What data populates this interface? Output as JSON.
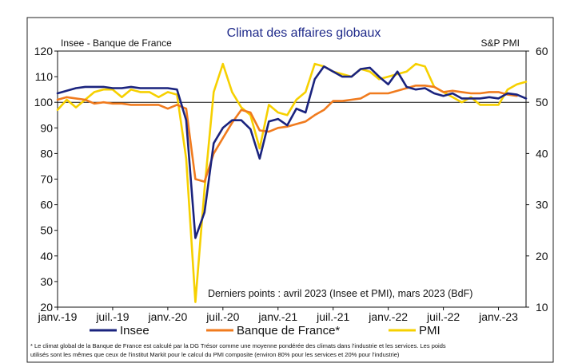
{
  "chart_data": {
    "type": "line",
    "title": "Climat des affaires globaux",
    "left_axis_label": "Insee - Banque de France",
    "right_axis_label": "S&P PMI",
    "ylim_left": [
      20,
      120
    ],
    "ylim_right": [
      10,
      60
    ],
    "yticks_left": [
      "20",
      "30",
      "40",
      "50",
      "60",
      "70",
      "80",
      "90",
      "100",
      "110",
      "120"
    ],
    "yticks_right": [
      "10",
      "20",
      "30",
      "40",
      "50",
      "60"
    ],
    "x_range": [
      "2019-01",
      "2023-04"
    ],
    "xticks": [
      {
        "label": "janv.-19",
        "date": "2019-01"
      },
      {
        "label": "juil.-19",
        "date": "2019-07"
      },
      {
        "label": "janv.-20",
        "date": "2020-01"
      },
      {
        "label": "juil.-20",
        "date": "2020-07"
      },
      {
        "label": "janv.-21",
        "date": "2021-01"
      },
      {
        "label": "juil.-21",
        "date": "2021-07"
      },
      {
        "label": "janv.-22",
        "date": "2022-01"
      },
      {
        "label": "juil.-22",
        "date": "2022-07"
      },
      {
        "label": "janv.-23",
        "date": "2023-01"
      }
    ],
    "reference_line": 100,
    "annotation": "Derniers points : avril 2023 (Insee et PMI), mars 2023 (BdF)",
    "series": [
      {
        "name": "Insee",
        "axis": "left",
        "color": "#1a237e",
        "start": "2019-01",
        "values": [
          103.5,
          104.5,
          105.5,
          106,
          106,
          106,
          105.5,
          105.5,
          106,
          105.5,
          105.5,
          105.5,
          105.5,
          105,
          93,
          47,
          57,
          84,
          90,
          93,
          93,
          89.5,
          78,
          92.5,
          93.5,
          91,
          97.5,
          96,
          109,
          114,
          112,
          110,
          110,
          113,
          113.5,
          110,
          107,
          112,
          106,
          105,
          105.5,
          103.5,
          102.5,
          103.5,
          101.5,
          101.5,
          101.5,
          102,
          101.5,
          103.5,
          103,
          101.5
        ]
      },
      {
        "name": "Banque de France*",
        "axis": "left",
        "color": "#f07b1e",
        "start": "2019-01",
        "values": [
          101,
          102,
          101.5,
          101,
          99.5,
          100,
          99.5,
          99.5,
          99,
          99,
          99,
          99,
          97.5,
          99,
          97.5,
          70,
          69,
          80,
          86,
          92,
          97,
          96,
          89,
          88.5,
          90,
          90.5,
          91.5,
          92.5,
          95,
          97,
          100.5,
          100.5,
          101,
          101.5,
          103.5,
          103.5,
          103.5,
          104.5,
          105.5,
          106.5,
          106.5,
          106,
          104,
          104.5,
          104,
          103.5,
          103.5,
          104,
          104,
          103,
          102.5
        ]
      },
      {
        "name": "PMI",
        "axis": "right",
        "color": "#f6d000",
        "start": "2019-01",
        "values": [
          48.5,
          50.5,
          49,
          50.5,
          52,
          52.5,
          52.5,
          51,
          52.5,
          52,
          52,
          51,
          52,
          51.5,
          39,
          11,
          33,
          52,
          57.5,
          52,
          49,
          47.5,
          41,
          49.5,
          48,
          47.5,
          50.5,
          52,
          57.5,
          57,
          56,
          55.5,
          55,
          56.5,
          56,
          54.5,
          55,
          55.5,
          56,
          57.5,
          57,
          53,
          52,
          51,
          50,
          51,
          49.5,
          49.5,
          49.5,
          52.5,
          53.5,
          54
        ]
      }
    ],
    "footnote_lines": [
      "* Le climat global de la Banque de France est calculé par la DG Trésor comme une moyenne pondérée des climats dans l'industrie et les services. Les poids",
      "utilisés sont les mêmes que ceux de l'institut Markit pour le calcul du PMI composite (environ 80% pour les services et 20% pour l'industrie)"
    ]
  }
}
